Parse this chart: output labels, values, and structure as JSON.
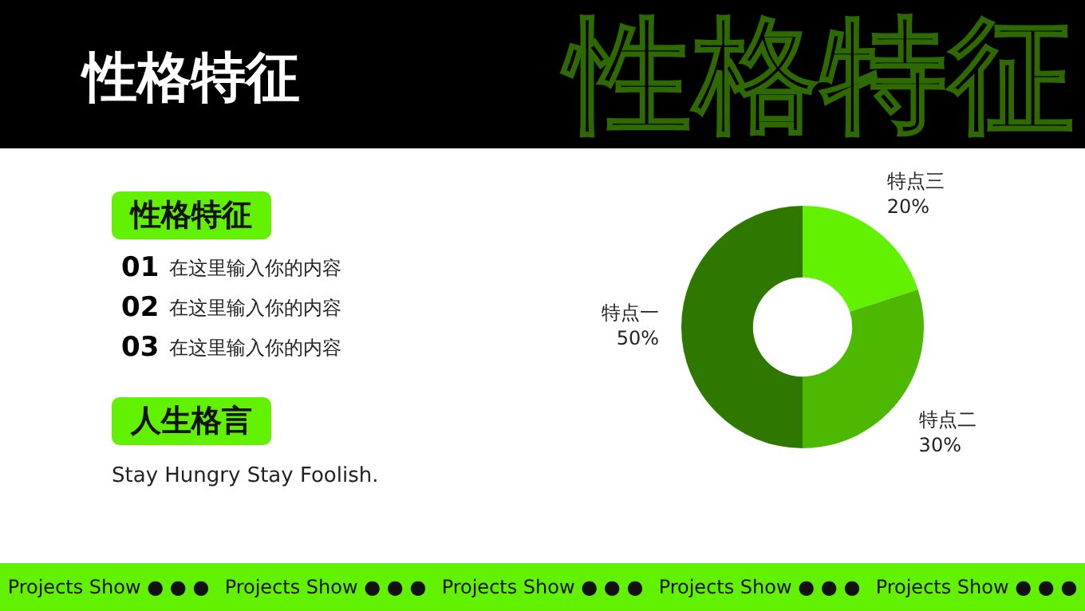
{
  "chart_data": {
    "type": "donut",
    "title": "性格特征",
    "categories": [
      "特点三",
      "特点二",
      "特点一"
    ],
    "values": [
      20,
      30,
      50
    ],
    "colors": [
      "#62f100",
      "#4cb800",
      "#2e7800"
    ],
    "value_labels": [
      "20%",
      "30%",
      "50%"
    ],
    "legend": false,
    "annotations": [
      "性格特征",
      "性格特征",
      "01",
      "在这里输入你的内容",
      "02",
      "在这里输入你的内容",
      "03",
      "在这里输入你的内容",
      "人生格言",
      "Stay Hungry Stay Foolish.",
      "Projects Show ● ● ●",
      "Projects Show ● ● ●",
      "Projects Show ● ● ●",
      "Projects Show ● ● ●",
      "Projects Show ● ● ●"
    ]
  }
}
